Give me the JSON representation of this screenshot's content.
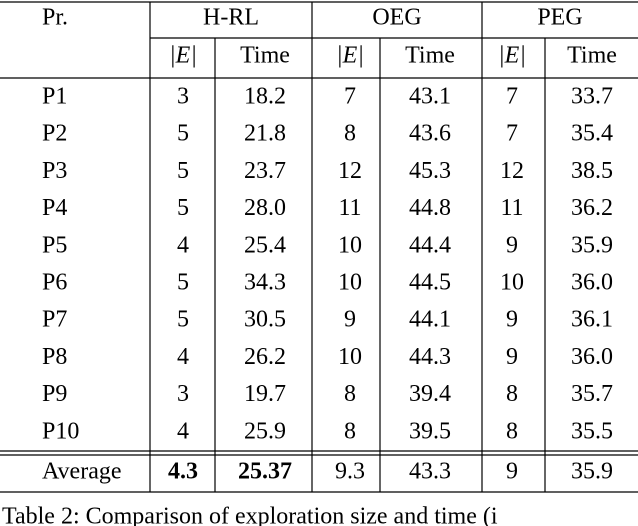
{
  "table": {
    "corner": "Pr.",
    "groups": [
      "H-RL",
      "OEG",
      "PEG"
    ],
    "subheaders": [
      "|E|",
      "Time",
      "|E|",
      "Time",
      "|E|",
      "Time"
    ],
    "rows": [
      [
        "P1",
        "3",
        "18.2",
        "7",
        "43.1",
        "7",
        "33.7"
      ],
      [
        "P2",
        "5",
        "21.8",
        "8",
        "43.6",
        "7",
        "35.4"
      ],
      [
        "P3",
        "5",
        "23.7",
        "12",
        "45.3",
        "12",
        "38.5"
      ],
      [
        "P4",
        "5",
        "28.0",
        "11",
        "44.8",
        "11",
        "36.2"
      ],
      [
        "P5",
        "4",
        "25.4",
        "10",
        "44.4",
        "9",
        "35.9"
      ],
      [
        "P6",
        "5",
        "34.3",
        "10",
        "44.5",
        "10",
        "36.0"
      ],
      [
        "P7",
        "5",
        "30.5",
        "9",
        "44.1",
        "9",
        "36.1"
      ],
      [
        "P8",
        "4",
        "26.2",
        "10",
        "44.3",
        "9",
        "36.0"
      ],
      [
        "P9",
        "3",
        "19.7",
        "8",
        "39.4",
        "8",
        "35.7"
      ],
      [
        "P10",
        "4",
        "25.9",
        "8",
        "39.5",
        "8",
        "35.5"
      ]
    ],
    "average": [
      "Average",
      "4.3",
      "25.37",
      "9.3",
      "43.3",
      "9",
      "35.9"
    ]
  },
  "caption": "Table 2: Comparison of exploration size and time (i"
}
